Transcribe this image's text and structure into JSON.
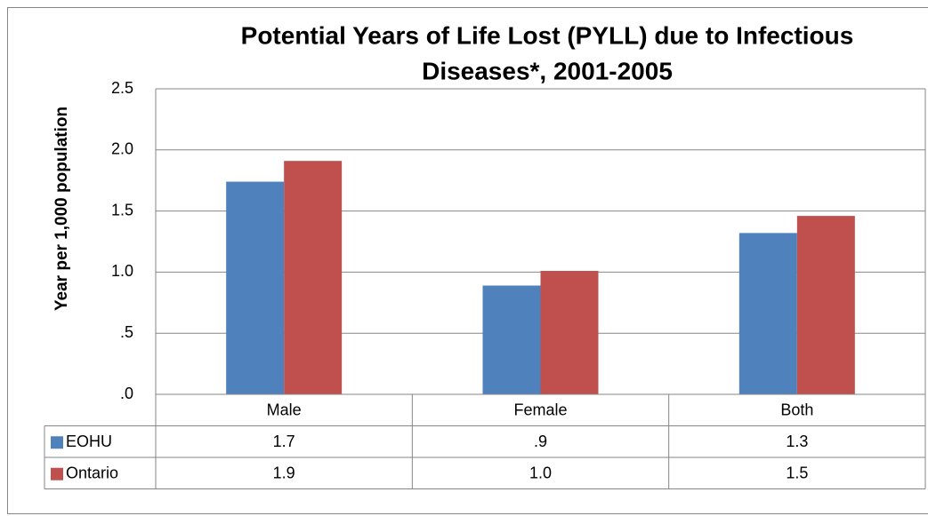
{
  "chart_data": {
    "type": "bar",
    "title": [
      "Potential Years of Life Lost (PYLL) due to Infectious",
      "Diseases*, 2001-2005"
    ],
    "y_label": "Year per 1,000 population",
    "categories": [
      "Male",
      "Female",
      "Both"
    ],
    "series": [
      {
        "name": "EOHU",
        "color": "#4f81bd",
        "values": [
          1.74,
          0.89,
          1.32
        ],
        "value_labels": [
          "1.7",
          ".9",
          "1.3"
        ]
      },
      {
        "name": "Ontario",
        "color": "#c0504d",
        "values": [
          1.91,
          1.01,
          1.46
        ],
        "value_labels": [
          "1.9",
          "1.0",
          "1.5"
        ]
      }
    ],
    "ylim": [
      0,
      2.5
    ],
    "yticks": [
      {
        "value": 0,
        "label": ".0"
      },
      {
        "value": 0.5,
        "label": ".5"
      },
      {
        "value": 1,
        "label": "1.0"
      },
      {
        "value": 1.5,
        "label": "1.5"
      },
      {
        "value": 2,
        "label": "2.0"
      },
      {
        "value": 2.5,
        "label": "2.5"
      }
    ],
    "grid": true
  }
}
